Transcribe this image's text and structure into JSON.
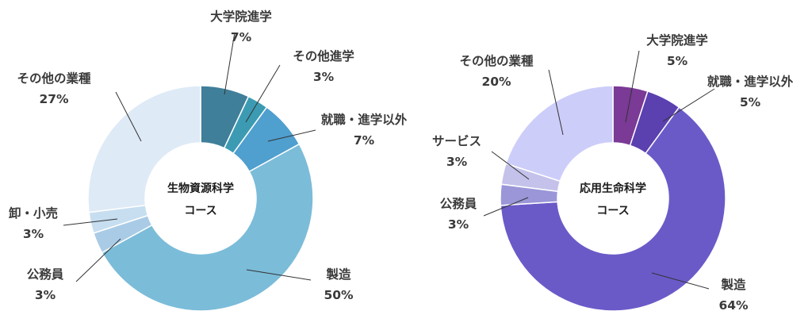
{
  "chart_data": [
    {
      "type": "donut",
      "center_label": [
        "生物資源科学",
        "コース"
      ],
      "slices": [
        {
          "label": "大学院進学",
          "value": 7,
          "value_label": "7%",
          "color": "#3f7f99"
        },
        {
          "label": "その他進学",
          "value": 3,
          "value_label": "3%",
          "color": "#3c9bb3"
        },
        {
          "label": "就職・進学以外",
          "value": 7,
          "value_label": "7%",
          "color": "#4f9fcf"
        },
        {
          "label": "製造",
          "value": 50,
          "value_label": "50%",
          "color": "#7bbcd9"
        },
        {
          "label": "公務員",
          "value": 3,
          "value_label": "3%",
          "color": "#a9cbe6"
        },
        {
          "label": "卸・小売",
          "value": 3,
          "value_label": "3%",
          "color": "#c6def0"
        },
        {
          "label": "その他の業種",
          "value": 27,
          "value_label": "27%",
          "color": "#deeaf6"
        }
      ]
    },
    {
      "type": "donut",
      "center_label": [
        "応用生命科学",
        "コース"
      ],
      "slices": [
        {
          "label": "大学院進学",
          "value": 5,
          "value_label": "5%",
          "color": "#7a3a96"
        },
        {
          "label": "就職・進学以外",
          "value": 5,
          "value_label": "5%",
          "color": "#5b40b0"
        },
        {
          "label": "製造",
          "value": 64,
          "value_label": "64%",
          "color": "#6a5ac8"
        },
        {
          "label": "公務員",
          "value": 3,
          "value_label": "3%",
          "color": "#9a96d8"
        },
        {
          "label": "サービス",
          "value": 3,
          "value_label": "3%",
          "color": "#c4c2ea"
        },
        {
          "label": "その他の業種",
          "value": 20,
          "value_label": "20%",
          "color": "#cdcdfa"
        }
      ]
    }
  ]
}
